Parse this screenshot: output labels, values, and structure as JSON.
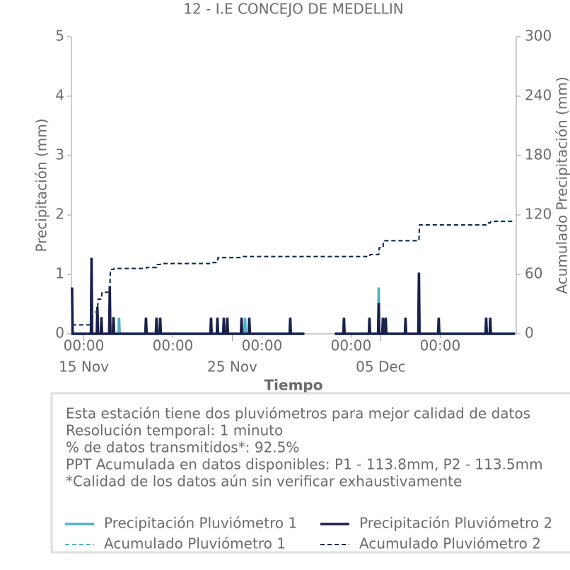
{
  "chart_data": {
    "type": "line",
    "title": "12 - I.E CONCEJO DE MEDELLIN",
    "xlabel": "Tiempo",
    "ylabel": "Precipitación (mm)",
    "y2label": "Acumulado Precipitación (mm)",
    "notes": [
      "Esta estación tiene dos pluviómetros para mejor calidad de datos",
      "Resolución temporal: 1 minuto",
      "% de datos transmitidos*: 92.5%",
      "PPT Acumulada en datos disponibles: P1 - 113.8mm, P2 - 113.5mm",
      "*Calidad de los datos aún sin verificar exhaustivamente"
    ],
    "xlim": [
      "14 Nov 04:00",
      "14 Dec 03:00"
    ],
    "xticks": [
      {
        "value": "15 Nov 00:00",
        "label": "00:00"
      },
      {
        "value": "21 Nov 00:00",
        "label": "00:00"
      },
      {
        "value": "27 Nov 00:00",
        "label": "00:00"
      },
      {
        "value": "03 Dec 00:00",
        "label": "00:00"
      },
      {
        "value": "09 Dec 00:00",
        "label": "00:00"
      }
    ],
    "xdate_ticks": [
      {
        "value": "15 Nov 00:00",
        "label": "15 Nov"
      },
      {
        "value": "25 Nov 00:00",
        "label": "25 Nov"
      },
      {
        "value": "05 Dec 00:00",
        "label": "05 Dec"
      }
    ],
    "ylim": [
      0,
      5
    ],
    "yticks": [
      0,
      1,
      2,
      3,
      4,
      5
    ],
    "y2lim": [
      0,
      300
    ],
    "y2ticks": [
      0,
      60,
      120,
      180,
      240,
      300
    ],
    "x": [
      "14 Nov 05:00",
      "14 Nov 06:00",
      "15 Nov 11:30",
      "15 Nov 12:30",
      "15 Nov 13:30",
      "15 Nov 21:00",
      "15 Nov 22:00",
      "15 Nov 23:00",
      "16 Nov 03:30",
      "16 Nov 04:30",
      "16 Nov 05:30",
      "16 Nov 17:00",
      "16 Nov 18:00",
      "16 Nov 19:00",
      "16 Nov 23:00",
      "17 Nov 00:00",
      "17 Nov 01:00",
      "17 Nov 08:00",
      "17 Nov 09:00",
      "17 Nov 10:00",
      "19 Nov 03:30",
      "19 Nov 04:30",
      "19 Nov 05:30",
      "19 Nov 20:30",
      "19 Nov 21:30",
      "19 Nov 22:30",
      "20 Nov 02:30",
      "20 Nov 03:30",
      "20 Nov 04:30",
      "23 Nov 12:40",
      "23 Nov 13:40",
      "23 Nov 14:40",
      "23 Nov 23:00",
      "24 Nov 00:00",
      "24 Nov 01:00",
      "24 Nov 09:20",
      "24 Nov 10:20",
      "24 Nov 11:20",
      "24 Nov 15:00",
      "24 Nov 16:00",
      "24 Nov 17:00",
      "25 Nov 14:00",
      "25 Nov 15:00",
      "25 Nov 16:00",
      "25 Nov 19:40",
      "25 Nov 20:40",
      "25 Nov 21:40",
      "26 Nov 02:30",
      "26 Nov 03:30",
      "26 Nov 04:30",
      "28 Nov 20:40",
      "28 Nov 21:40",
      "28 Nov 22:40",
      "29 Nov 20:40",
      "30 Nov 12:00",
      "01 Dec 21:40",
      "02 Dec 11:30",
      "02 Dec 12:30",
      "02 Dec 13:30",
      "04 Dec 04:45",
      "04 Dec 05:45",
      "04 Dec 06:45",
      "04 Dec 19:40",
      "04 Dec 20:40",
      "04 Dec 21:40",
      "05 Dec 02:30",
      "05 Dec 03:30",
      "05 Dec 04:30",
      "05 Dec 07:00",
      "05 Dec 08:00",
      "05 Dec 09:00",
      "06 Dec 15:00",
      "06 Dec 16:00",
      "06 Dec 17:00",
      "07 Dec 12:40",
      "07 Dec 13:40",
      "07 Dec 14:40",
      "08 Dec 20:40",
      "08 Dec 21:40",
      "08 Dec 22:40",
      "12 Dec 01:20",
      "12 Dec 02:20",
      "12 Dec 03:20",
      "12 Dec 08:00",
      "12 Dec 09:00",
      "12 Dec 10:00",
      "14 Dec 01:00"
    ],
    "series": [
      {
        "name": "Precipitación Pluviómetro 1",
        "color": "#4db3c6",
        "dash": false,
        "axis": "y",
        "values": [
          0.78,
          0,
          0,
          1.28,
          0,
          0,
          0.45,
          0,
          0,
          0.28,
          0,
          0,
          0.5,
          0,
          0,
          0.28,
          0,
          0,
          0.27,
          0,
          0,
          0.27,
          0,
          0,
          0.27,
          0,
          0,
          0.27,
          0,
          0,
          0.27,
          0,
          0,
          0.27,
          0,
          0,
          0.27,
          0,
          0,
          0.27,
          0,
          0,
          0.27,
          0,
          0,
          0.27,
          0,
          0,
          0.27,
          0,
          0,
          0.27,
          0,
          0,
          null,
          0,
          0,
          0.27,
          0,
          0,
          0.27,
          0,
          0,
          0.78,
          0,
          0,
          0.27,
          0,
          0,
          0.27,
          0,
          0,
          0.27,
          0,
          0,
          1.03,
          0,
          0,
          0.27,
          0,
          0,
          0.27,
          0,
          0,
          0.27,
          0,
          0
        ]
      },
      {
        "name": "Precipitación Pluviómetro 2",
        "color": "#1c1f4a",
        "dash": false,
        "axis": "y",
        "values": [
          0.78,
          0,
          0,
          1.28,
          0,
          0,
          0.45,
          0,
          0,
          0.28,
          0,
          0,
          0.8,
          0,
          0,
          0.28,
          0,
          0,
          0,
          0,
          0,
          0.27,
          0,
          0,
          0.27,
          0,
          0,
          0.27,
          0,
          0,
          0.27,
          0,
          0,
          0.27,
          0,
          0,
          0.27,
          0,
          0,
          0.27,
          0,
          0,
          0.27,
          0,
          0,
          0,
          0,
          0,
          0.27,
          0,
          0,
          0.27,
          0,
          0,
          null,
          0,
          0,
          0.27,
          0,
          0,
          0.27,
          0,
          0,
          0.52,
          0,
          0,
          0.27,
          0,
          0,
          0.27,
          0,
          0,
          0.27,
          0,
          0,
          1.03,
          0,
          0,
          0.27,
          0,
          0,
          0.27,
          0,
          0,
          0.27,
          0,
          0
        ]
      },
      {
        "name": "Acumulado Pluviómetro 1",
        "color": "#4db3c6",
        "dash": true,
        "axis": "y2",
        "values": [
          9,
          9,
          9,
          9,
          22,
          22,
          22,
          35,
          35,
          35,
          42,
          42,
          42,
          65,
          65,
          65,
          66,
          66,
          66,
          66,
          66,
          66,
          67,
          67,
          67,
          70,
          70,
          70,
          71,
          71,
          71,
          72,
          72,
          72,
          77,
          77,
          77,
          77,
          77,
          77,
          77,
          77,
          77,
          78,
          78,
          78,
          78,
          78,
          78,
          78,
          78,
          78,
          78,
          78,
          78,
          78,
          78,
          78,
          78,
          78,
          78,
          80,
          80,
          80,
          87,
          87,
          87,
          94,
          94,
          94,
          94,
          94,
          94,
          94,
          94,
          94,
          110,
          110,
          110,
          110,
          110,
          110,
          112,
          112,
          112,
          113.8,
          113.8
        ]
      },
      {
        "name": "Acumulado Pluviómetro 2",
        "color": "#12294a",
        "dash": true,
        "axis": "y2",
        "values": [
          9,
          9,
          9,
          9,
          22,
          22,
          22,
          35,
          35,
          35,
          42,
          42,
          42,
          65,
          65,
          65,
          66,
          66,
          66,
          66,
          66,
          66,
          67,
          67,
          67,
          70,
          70,
          70,
          71,
          71,
          71,
          72,
          72,
          72,
          77,
          77,
          77,
          77,
          77,
          77,
          77,
          77,
          77,
          78,
          78,
          78,
          78,
          78,
          78,
          78,
          78,
          78,
          78,
          78,
          78,
          78,
          78,
          78,
          78,
          78,
          78,
          80,
          80,
          80,
          87,
          87,
          87,
          94,
          94,
          94,
          94,
          94,
          94,
          94,
          94,
          94,
          110,
          110,
          110,
          110,
          110,
          110,
          112,
          112,
          112,
          113.5,
          113.5
        ]
      }
    ]
  }
}
